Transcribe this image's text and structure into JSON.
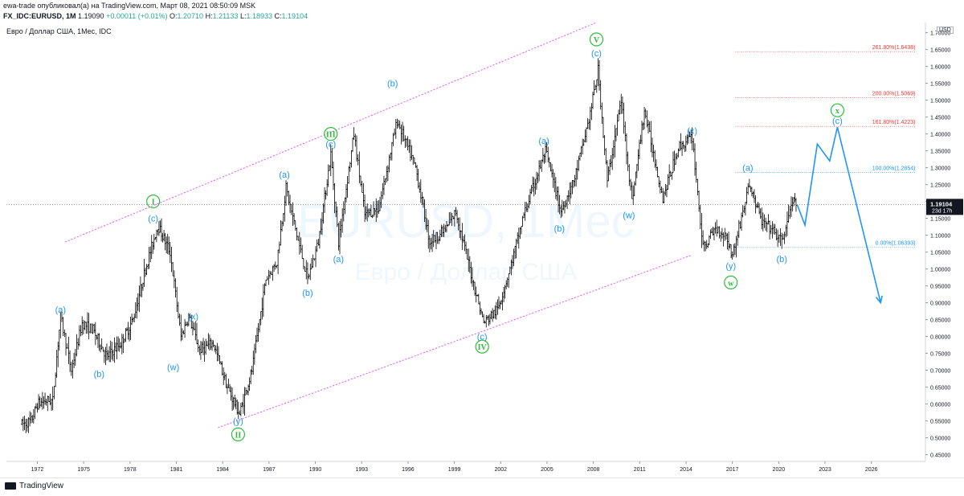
{
  "header": {
    "line1": "ewa-trade опубликовал(а) на TradingView.com, Март 08, 2021 08:50:09 MSK",
    "symbol": "FX_IDC:EURUSD, 1M",
    "last": "1.19090",
    "change": "+0.00011 (+0.01%)",
    "o_label": "O:",
    "o_val": "1.20710",
    "h_label": "H:",
    "h_val": "1.21133",
    "l_label": "L:",
    "l_val": "1.18933",
    "c_label": "C:",
    "c_val": "1.19104"
  },
  "chart_title": "Евро / Доллар США, 1Мес, IDC",
  "watermark": {
    "ticker": "EURUSD, 1Мес",
    "name": "Евро / Доллар США"
  },
  "currency": "USD",
  "price_tag": {
    "value": "1.19104",
    "countdown": "23d 17h"
  },
  "footer": {
    "brand": "TradingView"
  },
  "colors": {
    "up": "#26a69a",
    "wave_blue": "#2196f3",
    "wave_green": "#2dbd3a",
    "channel": "#e040fb",
    "fib_red": "#e53935",
    "fib_blue": "#2196f3",
    "bars": "#000000"
  },
  "chart_data": {
    "type": "ohlc",
    "interval": "1M",
    "x_ticks": [
      "1972",
      "1975",
      "1978",
      "1981",
      "1984",
      "1987",
      "1990",
      "1993",
      "1996",
      "1999",
      "2002",
      "2005",
      "2008",
      "2011",
      "2014",
      "2017",
      "2020",
      "2023",
      "2026"
    ],
    "y_ticks": [
      "0.45000",
      "0.50000",
      "0.55000",
      "0.60000",
      "0.65000",
      "0.70000",
      "0.75000",
      "0.80000",
      "0.85000",
      "0.90000",
      "0.95000",
      "1.00000",
      "1.05000",
      "1.10000",
      "1.15000",
      "1.20000",
      "1.25000",
      "1.30000",
      "1.35000",
      "1.40000",
      "1.45000",
      "1.50000",
      "1.55000",
      "1.60000",
      "1.65000",
      "1.70000"
    ],
    "ylim": [
      0.43,
      1.73
    ],
    "xlim": [
      1970.0,
      2029.5
    ],
    "price_path": [
      [
        1971.0,
        0.54
      ],
      [
        1971.6,
        0.55
      ],
      [
        1972.0,
        0.6
      ],
      [
        1972.5,
        0.61
      ],
      [
        1973.0,
        0.61
      ],
      [
        1973.1,
        0.66
      ],
      [
        1973.5,
        0.86
      ],
      [
        1974.2,
        0.7
      ],
      [
        1974.9,
        0.84
      ],
      [
        1975.6,
        0.82
      ],
      [
        1976.5,
        0.74
      ],
      [
        1977.4,
        0.78
      ],
      [
        1978.2,
        0.85
      ],
      [
        1979.0,
        1.0
      ],
      [
        1979.8,
        1.13
      ],
      [
        1980.6,
        1.05
      ],
      [
        1981.3,
        0.8
      ],
      [
        1981.8,
        0.86
      ],
      [
        1982.5,
        0.76
      ],
      [
        1983.4,
        0.78
      ],
      [
        1984.3,
        0.65
      ],
      [
        1985.1,
        0.57
      ],
      [
        1985.9,
        0.7
      ],
      [
        1986.8,
        0.97
      ],
      [
        1987.5,
        1.02
      ],
      [
        1988.1,
        1.24
      ],
      [
        1988.8,
        1.1
      ],
      [
        1989.5,
        0.97
      ],
      [
        1990.2,
        1.08
      ],
      [
        1991.0,
        1.34
      ],
      [
        1991.5,
        1.08
      ],
      [
        1992.5,
        1.4
      ],
      [
        1993.2,
        1.16
      ],
      [
        1994.1,
        1.18
      ],
      [
        1995.3,
        1.44
      ],
      [
        1996.5,
        1.3
      ],
      [
        1997.4,
        1.08
      ],
      [
        1998.5,
        1.12
      ],
      [
        1999.1,
        1.17
      ],
      [
        2000.0,
        1.0
      ],
      [
        2000.9,
        0.84
      ],
      [
        2001.8,
        0.88
      ],
      [
        2002.6,
        1.0
      ],
      [
        2003.5,
        1.16
      ],
      [
        2004.9,
        1.35
      ],
      [
        2005.9,
        1.17
      ],
      [
        2006.8,
        1.27
      ],
      [
        2007.8,
        1.46
      ],
      [
        2008.3,
        1.59
      ],
      [
        2008.9,
        1.26
      ],
      [
        2009.8,
        1.5
      ],
      [
        2010.5,
        1.2
      ],
      [
        2011.3,
        1.47
      ],
      [
        2012.5,
        1.21
      ],
      [
        2013.5,
        1.36
      ],
      [
        2014.4,
        1.39
      ],
      [
        2015.1,
        1.06
      ],
      [
        2015.9,
        1.12
      ],
      [
        2016.6,
        1.1
      ],
      [
        2017.0,
        1.04
      ],
      [
        2018.1,
        1.25
      ],
      [
        2018.9,
        1.14
      ],
      [
        2019.5,
        1.12
      ],
      [
        2020.2,
        1.08
      ],
      [
        2020.9,
        1.2
      ],
      [
        2021.2,
        1.19104
      ]
    ],
    "projection": [
      [
        2021.2,
        1.19
      ],
      [
        2021.7,
        1.13
      ],
      [
        2022.5,
        1.37
      ],
      [
        2023.3,
        1.32
      ],
      [
        2023.8,
        1.42
      ],
      [
        2026.6,
        0.9
      ]
    ],
    "channel_upper": [
      [
        1973.8,
        1.08
      ],
      [
        2008.2,
        1.73
      ]
    ],
    "channel_lower": [
      [
        1983.7,
        0.53
      ],
      [
        2014.3,
        1.04
      ]
    ],
    "current_price": 1.19104,
    "fib_levels": [
      {
        "label": "261.80%(1.6438)",
        "value": 1.6438,
        "color": "red"
      },
      {
        "label": "200.00%(1.5069)",
        "value": 1.5069,
        "color": "red"
      },
      {
        "label": "161.80%(1.4223)",
        "value": 1.4223,
        "color": "red"
      },
      {
        "label": "100.00%(1.2854)",
        "value": 1.2854,
        "color": "blue"
      },
      {
        "label": "0.00%(1.06393)",
        "value": 1.06393,
        "color": "blue"
      }
    ],
    "wave_labels": [
      {
        "text": "(a)",
        "x": 1973.5,
        "y": 0.88,
        "kind": "blue"
      },
      {
        "text": "(b)",
        "x": 1976.0,
        "y": 0.69,
        "kind": "blue"
      },
      {
        "text": "(c)",
        "x": 1979.5,
        "y": 1.15,
        "kind": "blue"
      },
      {
        "text": "I",
        "x": 1979.5,
        "y": 1.2,
        "kind": "green"
      },
      {
        "text": "(x)",
        "x": 1982.1,
        "y": 0.86,
        "kind": "blue"
      },
      {
        "text": "(w)",
        "x": 1980.8,
        "y": 0.71,
        "kind": "blue"
      },
      {
        "text": "(y)",
        "x": 1985.0,
        "y": 0.55,
        "kind": "blue"
      },
      {
        "text": "II",
        "x": 1985.0,
        "y": 0.51,
        "kind": "green"
      },
      {
        "text": "(a)",
        "x": 1988.0,
        "y": 1.28,
        "kind": "blue"
      },
      {
        "text": "(b)",
        "x": 1989.5,
        "y": 0.93,
        "kind": "blue"
      },
      {
        "text": "(a)",
        "x": 1991.5,
        "y": 1.03,
        "kind": "blue"
      },
      {
        "text": "(c)",
        "x": 1991.0,
        "y": 1.37,
        "kind": "blue"
      },
      {
        "text": "III",
        "x": 1991.0,
        "y": 1.4,
        "kind": "green"
      },
      {
        "text": "(b)",
        "x": 1995.0,
        "y": 1.55,
        "kind": "blue"
      },
      {
        "text": "(c)",
        "x": 2000.8,
        "y": 0.8,
        "kind": "blue"
      },
      {
        "text": "IV",
        "x": 2000.8,
        "y": 0.77,
        "kind": "green"
      },
      {
        "text": "(a)",
        "x": 2004.8,
        "y": 1.38,
        "kind": "blue"
      },
      {
        "text": "(b)",
        "x": 2005.8,
        "y": 1.12,
        "kind": "blue"
      },
      {
        "text": "(c)",
        "x": 2008.2,
        "y": 1.64,
        "kind": "blue"
      },
      {
        "text": "V",
        "x": 2008.2,
        "y": 1.68,
        "kind": "green"
      },
      {
        "text": "(w)",
        "x": 2010.3,
        "y": 1.16,
        "kind": "blue"
      },
      {
        "text": "(x)",
        "x": 2014.4,
        "y": 1.41,
        "kind": "blue"
      },
      {
        "text": "(y)",
        "x": 2016.9,
        "y": 1.01,
        "kind": "blue"
      },
      {
        "text": "w",
        "x": 2016.9,
        "y": 0.96,
        "kind": "green"
      },
      {
        "text": "(a)",
        "x": 2018.0,
        "y": 1.3,
        "kind": "blue"
      },
      {
        "text": "(b)",
        "x": 2020.2,
        "y": 1.03,
        "kind": "blue"
      },
      {
        "text": "(c)",
        "x": 2023.8,
        "y": 1.44,
        "kind": "blue"
      },
      {
        "text": "x",
        "x": 2023.8,
        "y": 1.47,
        "kind": "green"
      }
    ]
  }
}
